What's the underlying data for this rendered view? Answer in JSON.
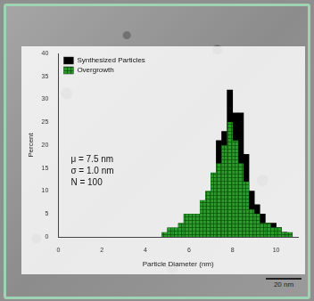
{
  "chart_data": {
    "type": "histogram",
    "x_label": "Particle Diameter (nm)",
    "y_label": "Percent",
    "bins": [
      4.75,
      5,
      5.25,
      5.5,
      5.75,
      6,
      6.25,
      6.5,
      6.75,
      7,
      7.25,
      7.5,
      7.75,
      8,
      8.25,
      8.5,
      8.75,
      9,
      9.25,
      9.5,
      9.75,
      10,
      10.25,
      10.5,
      10.75
    ],
    "series": [
      {
        "name": "Synthesized Particles",
        "color": "#000000",
        "values": [
          0,
          0,
          0,
          0,
          0,
          0,
          1,
          3,
          5,
          9,
          21,
          23,
          32,
          27,
          27,
          18,
          10,
          7,
          5,
          3,
          3,
          2,
          1,
          0
        ]
      },
      {
        "name": "Overgrowth",
        "color": "#2e9a2e",
        "values": [
          1,
          2,
          2,
          3,
          5,
          5,
          5,
          8,
          10,
          14,
          16,
          20,
          25,
          21,
          16,
          12,
          6,
          5,
          3,
          3,
          2,
          2,
          1,
          1
        ]
      }
    ],
    "annotations": [
      "μ = 7.5 nm",
      "σ = 1.0 nm",
      "N = 100"
    ],
    "scale_label": "20 nm",
    "xlim": [
      0,
      11
    ],
    "xticks": [
      0,
      2,
      4,
      6,
      8,
      10
    ],
    "ylim": [
      0,
      40
    ],
    "yticks": [
      0,
      5,
      10,
      15,
      20,
      25,
      30,
      35,
      40
    ],
    "grid": false,
    "legend": "upper left"
  }
}
